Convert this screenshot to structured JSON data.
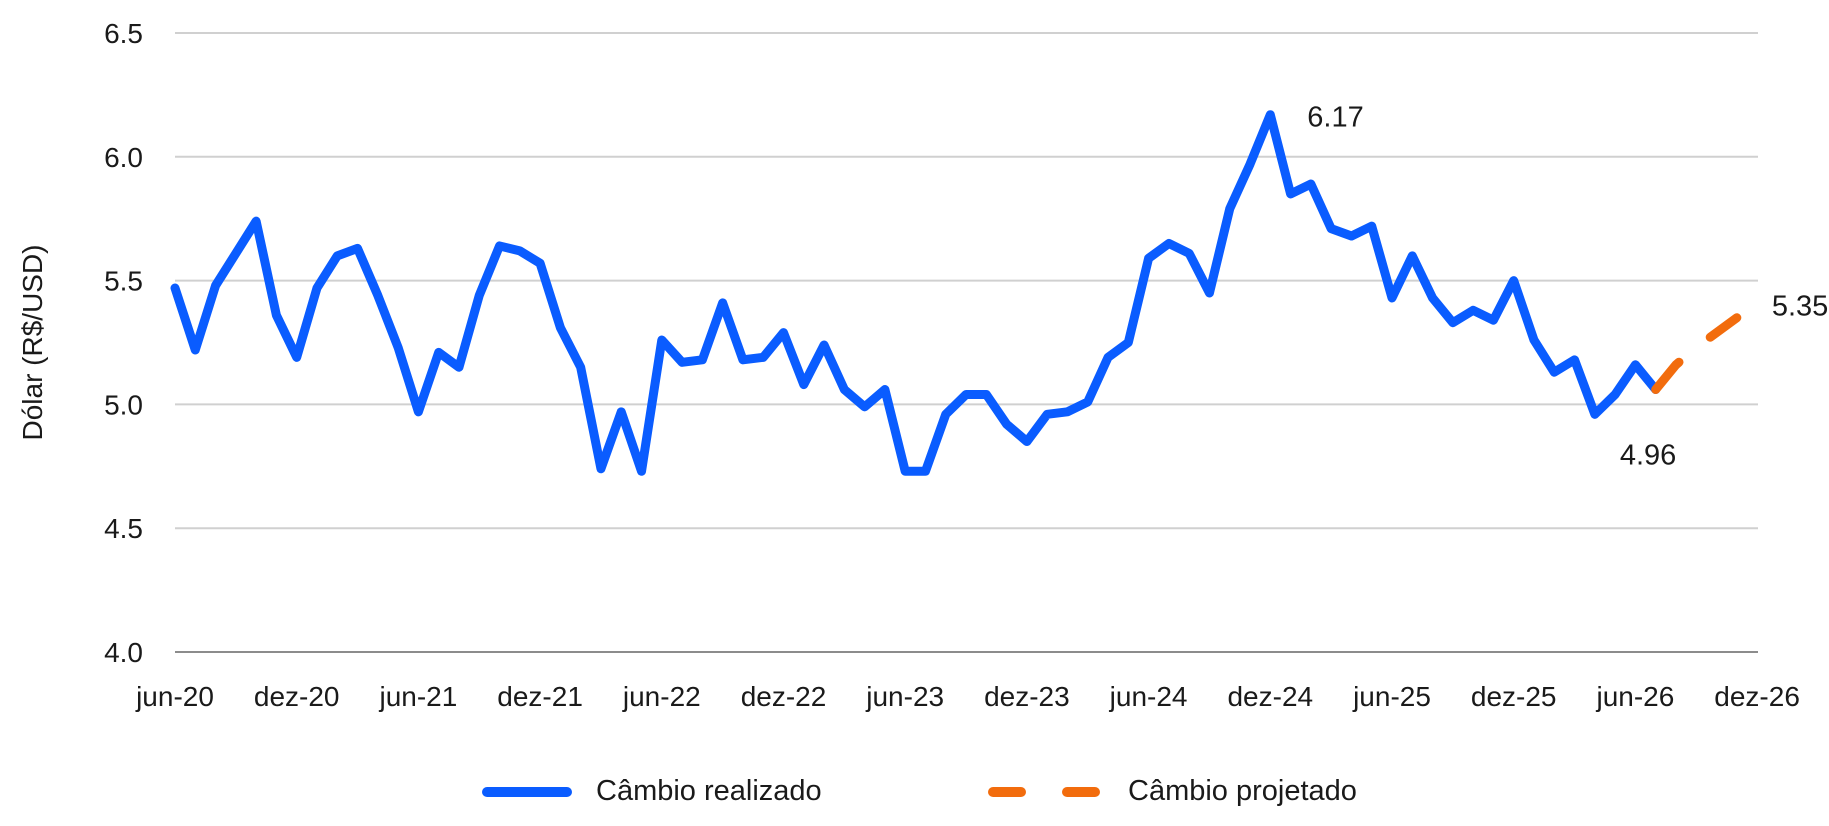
{
  "colors": {
    "realized": "#0a5cff",
    "projected": "#f26c0d",
    "grid": "#d0d0d0",
    "axis": "#8c8c8c"
  },
  "chart_data": {
    "type": "line",
    "ylabel": "Dólar (R$/USD)",
    "ylim": [
      4.0,
      6.5
    ],
    "yticks": [
      "4.0",
      "4.5",
      "5.0",
      "5.5",
      "6.0",
      "6.5"
    ],
    "xticks": [
      "jun-20",
      "dez-20",
      "jun-21",
      "dez-21",
      "jun-22",
      "dez-22",
      "jun-23",
      "dez-23",
      "jun-24",
      "dez-24",
      "jun-25",
      "dez-25",
      "jun-26",
      "dez-26"
    ],
    "grid": true,
    "legend": "bottom",
    "series": [
      {
        "name": "Câmbio realizado",
        "style": "solid",
        "x_start": "jun-20",
        "values": [
          5.47,
          5.22,
          5.48,
          5.61,
          5.74,
          5.36,
          5.19,
          5.47,
          5.6,
          5.63,
          5.44,
          5.23,
          4.97,
          5.21,
          5.15,
          5.44,
          5.64,
          5.62,
          5.57,
          5.31,
          5.15,
          4.74,
          4.97,
          4.73,
          5.26,
          5.17,
          5.18,
          5.41,
          5.18,
          5.19,
          5.29,
          5.08,
          5.24,
          5.06,
          4.99,
          5.06,
          4.73,
          4.73,
          4.96,
          5.04,
          5.04,
          4.92,
          4.85,
          4.96,
          4.97,
          5.01,
          5.19,
          5.25,
          5.59,
          5.65,
          5.61,
          5.45,
          5.79,
          5.97,
          6.17,
          5.85,
          5.89,
          5.71,
          5.68,
          5.72,
          5.43,
          5.6,
          5.43,
          5.33,
          5.38,
          5.34,
          5.5,
          5.26,
          5.13,
          5.18,
          4.96,
          5.04,
          5.16,
          5.06
        ]
      },
      {
        "name": "Câmbio projetado",
        "style": "dashed",
        "x_start": "ago-26",
        "values": [
          5.06,
          5.16,
          5.23,
          5.29,
          5.35
        ]
      }
    ],
    "annotations": [
      "6.17",
      "4.96",
      "5.35"
    ]
  }
}
